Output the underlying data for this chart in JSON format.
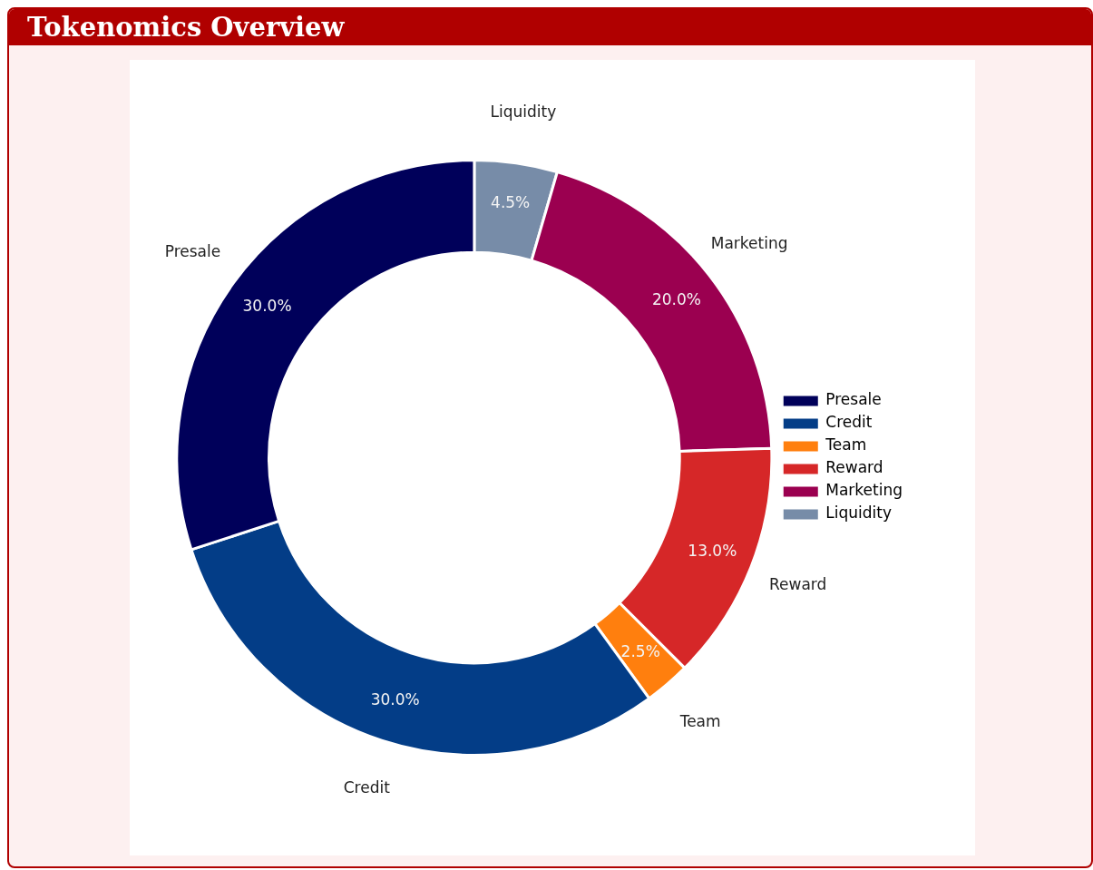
{
  "chart_data": {
    "type": "donut",
    "title": "Tokenomics Overview",
    "categories": [
      "Presale",
      "Credit",
      "Team",
      "Reward",
      "Marketing",
      "Liquidity"
    ],
    "values": [
      30,
      30,
      2.5,
      13,
      20,
      4.5
    ],
    "colors": [
      "#00005a",
      "#033d87",
      "#ff7f0e",
      "#d62728",
      "#9b0050",
      "#778ca8"
    ],
    "value_labels": [
      "30.0%",
      "30.0%",
      "2.5%",
      "13.0%",
      "20.0%",
      "4.5%"
    ],
    "legend": "right"
  }
}
